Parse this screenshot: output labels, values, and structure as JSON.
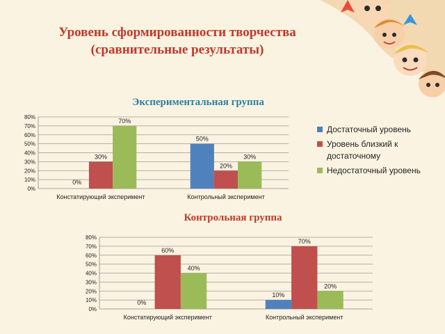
{
  "page": {
    "title_line1": "Уровень сформированности творчества",
    "title_line2": "(сравнительные результаты)"
  },
  "colors": {
    "background": "#fbf3e1",
    "title": "#c0392b",
    "exp_title": "#2e7fa0",
    "series": [
      "#4f81bd",
      "#c0504d",
      "#9bbb59"
    ]
  },
  "legend": {
    "items": [
      {
        "label": "Достаточный уровень",
        "color": "#4f81bd"
      },
      {
        "label": "Уровень близкий к достаточному",
        "color": "#c0504d"
      },
      {
        "label": "Недостаточный уровень",
        "color": "#9bbb59"
      }
    ]
  },
  "chart_data": [
    {
      "type": "bar",
      "title": "Экспериментальная группа",
      "categories": [
        "Констатирующий эксперимент",
        "Контрольный эксперимент"
      ],
      "series": [
        {
          "name": "Достаточный уровень",
          "values": [
            0,
            50
          ]
        },
        {
          "name": "Уровень близкий к достаточному",
          "values": [
            30,
            20
          ]
        },
        {
          "name": "Недостаточный уровень",
          "values": [
            70,
            30
          ]
        }
      ],
      "ylim": [
        0,
        80
      ],
      "yticks": [
        "0%",
        "10%",
        "20%",
        "30%",
        "40%",
        "50%",
        "60%",
        "70%",
        "80%"
      ],
      "grid": true,
      "legend": "right"
    },
    {
      "type": "bar",
      "title": "Контрольная группа",
      "categories": [
        "Констатирующий эксперимент",
        "Контрольный эксперимент"
      ],
      "series": [
        {
          "name": "Достаточный уровень",
          "values": [
            0,
            10
          ]
        },
        {
          "name": "Уровень близкий к достаточному",
          "values": [
            60,
            70
          ]
        },
        {
          "name": "Недостаточный уровень",
          "values": [
            40,
            20
          ]
        }
      ],
      "ylim": [
        0,
        80
      ],
      "yticks": [
        "0%",
        "10%",
        "20%",
        "30%",
        "40%",
        "50%",
        "60%",
        "70%",
        "80%"
      ],
      "grid": true,
      "legend": "none"
    }
  ]
}
